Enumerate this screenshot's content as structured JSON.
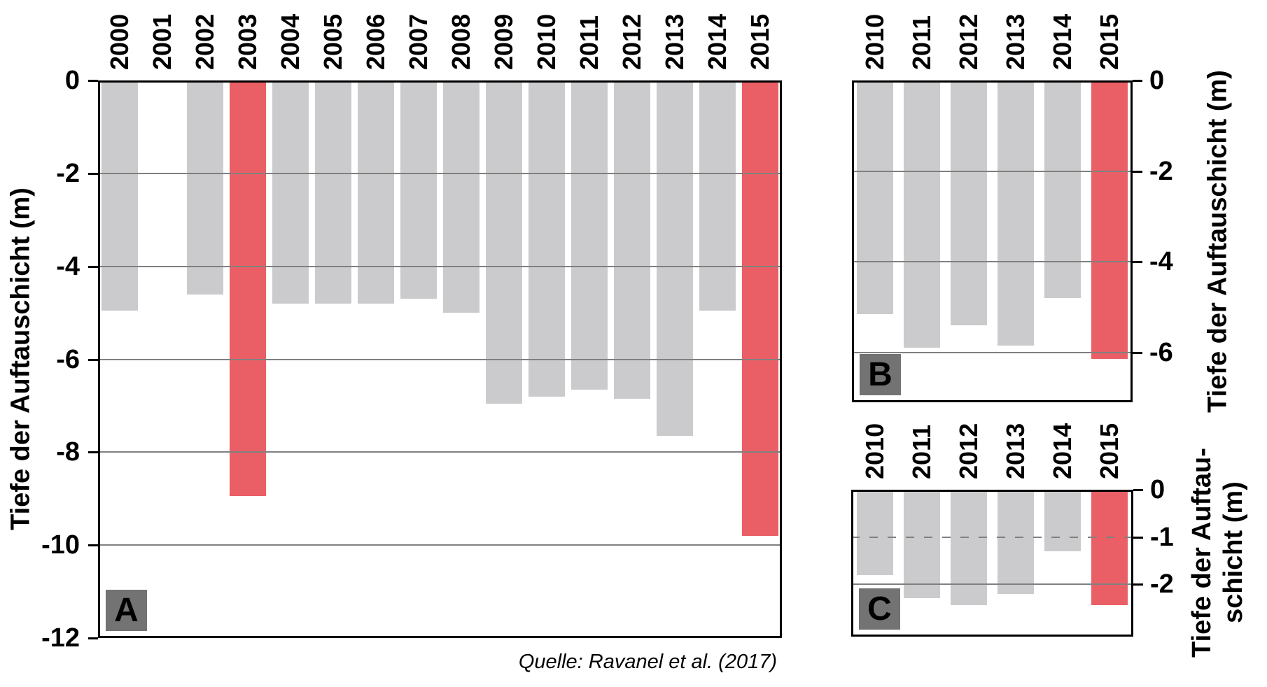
{
  "source_note": "Quelle: Ravanel et al. (2017)",
  "colors": {
    "bar": "#cbcbcd",
    "bar_highlight": "#ea5f66",
    "gridline": "#808080",
    "border": "#000000",
    "panel_label_bg": "#737373",
    "panel_label_text": "#000000",
    "background": "#ffffff"
  },
  "chart_data": [
    {
      "id": "A",
      "type": "bar",
      "panel_label": "A",
      "ylabel_lines": [
        "Tiefe der Auftauschicht (m)"
      ],
      "categories": [
        "2000",
        "2001",
        "2002",
        "2003",
        "2004",
        "2005",
        "2006",
        "2007",
        "2008",
        "2009",
        "2010",
        "2011",
        "2012",
        "2013",
        "2014",
        "2015"
      ],
      "values": [
        -4.95,
        null,
        -4.6,
        -8.95,
        -4.8,
        -4.8,
        -4.8,
        -4.7,
        -5.0,
        -6.95,
        -6.8,
        -6.65,
        -6.85,
        -7.65,
        -4.95,
        -9.8
      ],
      "highlighted_categories": [
        "2003",
        "2015"
      ],
      "ylim": [
        0,
        -12
      ],
      "yticks": [
        0,
        -2,
        -4,
        -6,
        -8,
        -10,
        -12
      ],
      "gridlines": [
        {
          "v": -2,
          "style": "solid"
        },
        {
          "v": -4,
          "style": "solid"
        },
        {
          "v": -6,
          "style": "solid"
        },
        {
          "v": -8,
          "style": "solid"
        },
        {
          "v": -10,
          "style": "solid"
        }
      ],
      "ticks_side": "left",
      "legend": "none"
    },
    {
      "id": "B",
      "type": "bar",
      "panel_label": "B",
      "ylabel_lines": [
        "Tiefe der Auftauschicht (m)"
      ],
      "categories": [
        "2010",
        "2011",
        "2012",
        "2013",
        "2014",
        "2015"
      ],
      "values": [
        -5.15,
        -5.9,
        -5.4,
        -5.85,
        -4.8,
        -6.15
      ],
      "highlighted_categories": [
        "2015"
      ],
      "ylim": [
        0,
        -7.1
      ],
      "yticks": [
        0,
        -2,
        -4,
        -6
      ],
      "gridlines": [
        {
          "v": -2,
          "style": "solid"
        },
        {
          "v": -4,
          "style": "solid"
        },
        {
          "v": -6,
          "style": "solid"
        }
      ],
      "ticks_side": "right",
      "legend": "none"
    },
    {
      "id": "C",
      "type": "bar",
      "panel_label": "C",
      "ylabel_lines": [
        "Tiefe der Auftau-",
        "schicht (m)"
      ],
      "categories": [
        "2010",
        "2011",
        "2012",
        "2013",
        "2014",
        "2015"
      ],
      "values": [
        -1.8,
        -2.3,
        -2.45,
        -2.2,
        -1.3,
        -2.45
      ],
      "highlighted_categories": [
        "2015"
      ],
      "ylim": [
        0,
        -3.11
      ],
      "yticks": [
        0,
        -1,
        -2
      ],
      "gridlines": [
        {
          "v": -1,
          "style": "dashed"
        },
        {
          "v": -2,
          "style": "solid"
        }
      ],
      "ticks_side": "right",
      "legend": "none"
    }
  ]
}
